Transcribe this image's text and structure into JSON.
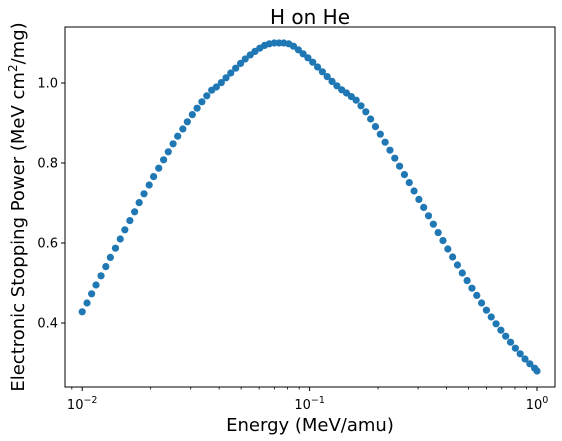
{
  "chart_data": {
    "type": "scatter",
    "title": "H on He",
    "xlabel": "Energy (MeV/amu)",
    "ylabel_main": "Electronic Stopping Power (MeV cm",
    "ylabel_sup": "2",
    "ylabel_end": "/mg)",
    "xscale": "log",
    "xlim": [
      0.0084,
      1.2
    ],
    "ylim": [
      0.24,
      1.14
    ],
    "x_ticks": [
      {
        "value": 0.01,
        "base": "10",
        "exp": "−2"
      },
      {
        "value": 0.1,
        "base": "10",
        "exp": "−1"
      },
      {
        "value": 1.0,
        "base": "10",
        "exp": "0"
      }
    ],
    "y_ticks": [
      {
        "value": 0.4,
        "label": "0.4"
      },
      {
        "value": 0.6,
        "label": "0.6"
      },
      {
        "value": 0.8,
        "label": "0.8"
      },
      {
        "value": 1.0,
        "label": "1.0"
      }
    ],
    "grid": false,
    "marker_color": "#1f77b4",
    "series": [
      {
        "x": [
          0.01,
          0.0105,
          0.011,
          0.0115,
          0.0121,
          0.0127,
          0.0133,
          0.014,
          0.0147,
          0.0154,
          0.0162,
          0.017,
          0.0178,
          0.0187,
          0.0197,
          0.0206,
          0.0217,
          0.0228,
          0.0239,
          0.0251,
          0.0263,
          0.0277,
          0.029,
          0.0305,
          0.032,
          0.0336,
          0.0353,
          0.0371,
          0.0389,
          0.0409,
          0.0429,
          0.045,
          0.0473,
          0.0497,
          0.0521,
          0.0548,
          0.0575,
          0.0604,
          0.0634,
          0.0665,
          0.0699,
          0.0734,
          0.077,
          0.0809,
          0.0849,
          0.0892,
          0.0936,
          0.0983,
          0.1032,
          0.1084,
          0.1138,
          0.1195,
          0.1255,
          0.1318,
          0.1384,
          0.1453,
          0.1526,
          0.1602,
          0.1683,
          0.1767,
          0.1855,
          0.1948,
          0.2046,
          0.2148,
          0.2256,
          0.2369,
          0.2487,
          0.2612,
          0.2743,
          0.288,
          0.3024,
          0.3175,
          0.3334,
          0.3501,
          0.3676,
          0.386,
          0.4054,
          0.4256,
          0.447,
          0.4693,
          0.4928,
          0.5175,
          0.5434,
          0.5706,
          0.5992,
          0.6291,
          0.6607,
          0.6937,
          0.7284,
          0.7649,
          0.8032,
          0.8434,
          0.8856,
          0.93,
          0.9765,
          1.0
        ],
        "y": [
          0.428,
          0.45,
          0.473,
          0.495,
          0.518,
          0.541,
          0.564,
          0.587,
          0.61,
          0.633,
          0.656,
          0.678,
          0.701,
          0.723,
          0.745,
          0.766,
          0.787,
          0.808,
          0.828,
          0.848,
          0.867,
          0.885,
          0.903,
          0.921,
          0.937,
          0.953,
          0.968,
          0.982,
          0.99,
          1.001,
          1.013,
          1.025,
          1.037,
          1.049,
          1.06,
          1.07,
          1.079,
          1.087,
          1.094,
          1.098,
          1.1,
          1.1,
          1.1,
          1.098,
          1.092,
          1.083,
          1.073,
          1.063,
          1.052,
          1.04,
          1.028,
          1.016,
          1.004,
          0.993,
          0.983,
          0.975,
          0.966,
          0.957,
          0.943,
          0.928,
          0.91,
          0.891,
          0.872,
          0.852,
          0.832,
          0.812,
          0.792,
          0.771,
          0.751,
          0.73,
          0.709,
          0.689,
          0.668,
          0.647,
          0.626,
          0.606,
          0.585,
          0.565,
          0.545,
          0.525,
          0.506,
          0.487,
          0.469,
          0.45,
          0.432,
          0.415,
          0.398,
          0.382,
          0.367,
          0.352,
          0.337,
          0.323,
          0.31,
          0.298,
          0.287,
          0.28
        ]
      }
    ]
  }
}
